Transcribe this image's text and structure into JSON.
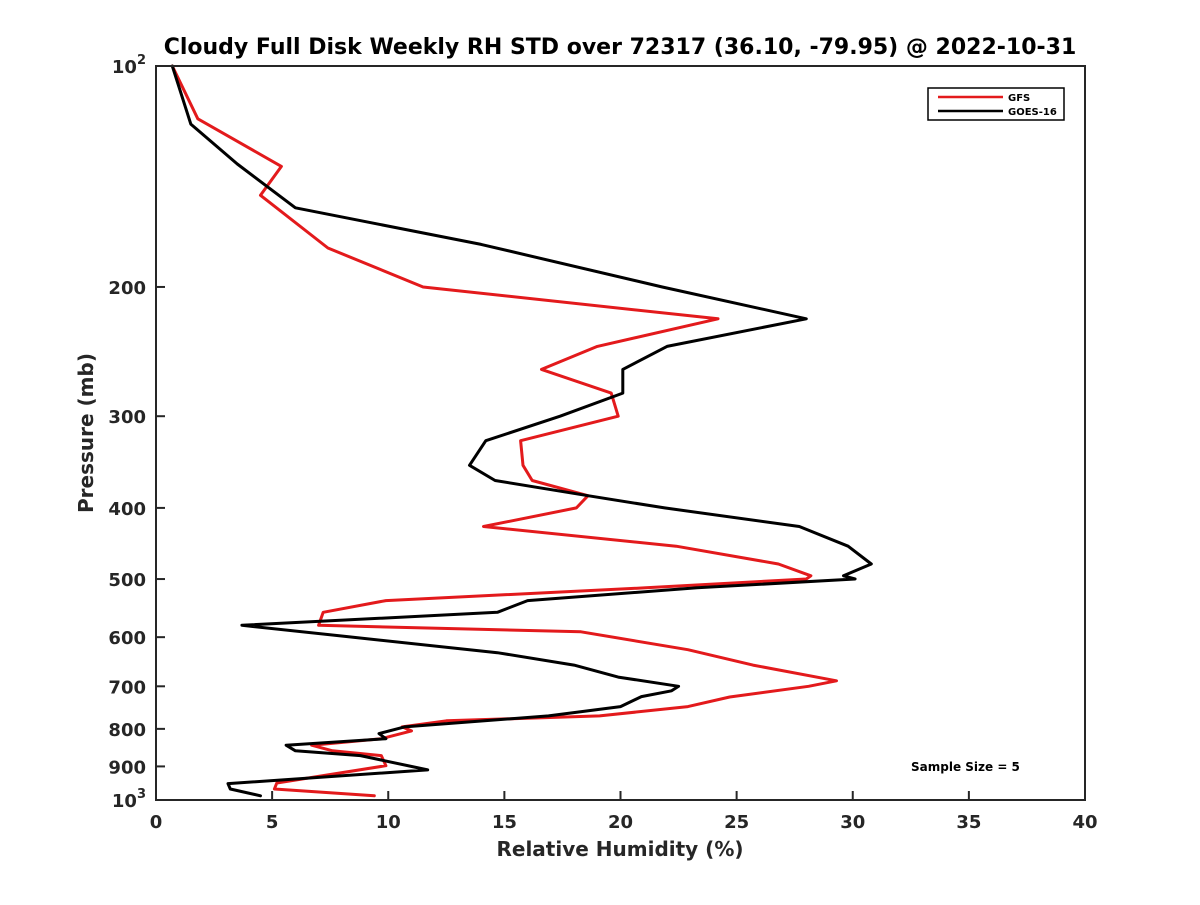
{
  "chart_data": {
    "type": "line",
    "title": "Cloudy Full Disk Weekly RH STD over 72317 (36.10, -79.95) @ 2022-10-31",
    "xlabel": "Relative Humidity (%)",
    "ylabel": "Pressure (mb)",
    "xlim": [
      0,
      40
    ],
    "ylim": [
      100,
      1000
    ],
    "y_scale": "log",
    "y_reversed": true,
    "x_ticks": [
      0,
      5,
      10,
      15,
      20,
      25,
      30,
      35,
      40
    ],
    "y_ticks": [
      100,
      200,
      300,
      400,
      500,
      600,
      700,
      800,
      900,
      1000
    ],
    "y_tick_labels": {
      "100": {
        "base": "10",
        "exp": "2"
      },
      "200": "200",
      "300": "300",
      "400": "400",
      "500": "500",
      "600": "600",
      "700": "700",
      "800": "800",
      "900": "900",
      "1000": {
        "base": "10",
        "exp": "3"
      }
    },
    "grid": false,
    "legend_position": "top-right",
    "annotation": "Sample Size = 5",
    "series": [
      {
        "name": "GFS",
        "color": "#e31a1c",
        "points": [
          [
            0.7,
            100
          ],
          [
            1.8,
            118
          ],
          [
            5.4,
            137
          ],
          [
            4.5,
            150
          ],
          [
            7.4,
            177
          ],
          [
            11.5,
            200
          ],
          [
            24.2,
            221
          ],
          [
            19.0,
            241
          ],
          [
            16.6,
            259
          ],
          [
            19.6,
            279
          ],
          [
            19.9,
            300
          ],
          [
            15.7,
            324
          ],
          [
            15.8,
            350
          ],
          [
            16.2,
            367
          ],
          [
            18.6,
            385
          ],
          [
            18.1,
            400
          ],
          [
            14.1,
            424
          ],
          [
            22.4,
            451
          ],
          [
            26.8,
            477
          ],
          [
            28.2,
            495
          ],
          [
            28.0,
            500
          ],
          [
            21.1,
            514
          ],
          [
            9.9,
            535
          ],
          [
            7.2,
            555
          ],
          [
            7.0,
            578
          ],
          [
            18.3,
            590
          ],
          [
            22.9,
            624
          ],
          [
            25.7,
            655
          ],
          [
            29.3,
            688
          ],
          [
            28.1,
            700
          ],
          [
            24.7,
            724
          ],
          [
            22.9,
            746
          ],
          [
            19.1,
            768
          ],
          [
            12.5,
            780
          ],
          [
            10.6,
            795
          ],
          [
            11.0,
            805
          ],
          [
            9.7,
            825
          ],
          [
            6.7,
            842
          ],
          [
            7.6,
            857
          ],
          [
            9.7,
            870
          ],
          [
            9.9,
            898
          ],
          [
            5.2,
            948
          ],
          [
            5.1,
            966
          ],
          [
            9.4,
            987
          ]
        ]
      },
      {
        "name": "GOES-16",
        "color": "#000000",
        "points": [
          [
            0.7,
            100
          ],
          [
            1.5,
            120
          ],
          [
            3.5,
            136
          ],
          [
            6.0,
            156
          ],
          [
            14.0,
            175
          ],
          [
            21.8,
            200
          ],
          [
            28.0,
            221
          ],
          [
            22.0,
            241
          ],
          [
            20.1,
            259
          ],
          [
            20.1,
            279
          ],
          [
            17.4,
            300
          ],
          [
            14.2,
            324
          ],
          [
            13.5,
            350
          ],
          [
            14.6,
            367
          ],
          [
            18.6,
            385
          ],
          [
            21.9,
            400
          ],
          [
            27.7,
            424
          ],
          [
            29.8,
            451
          ],
          [
            30.8,
            477
          ],
          [
            29.6,
            495
          ],
          [
            30.1,
            500
          ],
          [
            23.3,
            514
          ],
          [
            16.0,
            535
          ],
          [
            14.7,
            555
          ],
          [
            3.7,
            578
          ],
          [
            14.7,
            630
          ],
          [
            18.0,
            655
          ],
          [
            19.9,
            680
          ],
          [
            22.5,
            700
          ],
          [
            22.2,
            710
          ],
          [
            20.9,
            723
          ],
          [
            20.0,
            746
          ],
          [
            16.9,
            768
          ],
          [
            10.7,
            795
          ],
          [
            9.6,
            812
          ],
          [
            9.9,
            825
          ],
          [
            5.6,
            842
          ],
          [
            6.0,
            857
          ],
          [
            8.8,
            870
          ],
          [
            11.7,
            910
          ],
          [
            3.1,
            950
          ],
          [
            3.2,
            966
          ],
          [
            4.5,
            987
          ]
        ]
      }
    ]
  }
}
